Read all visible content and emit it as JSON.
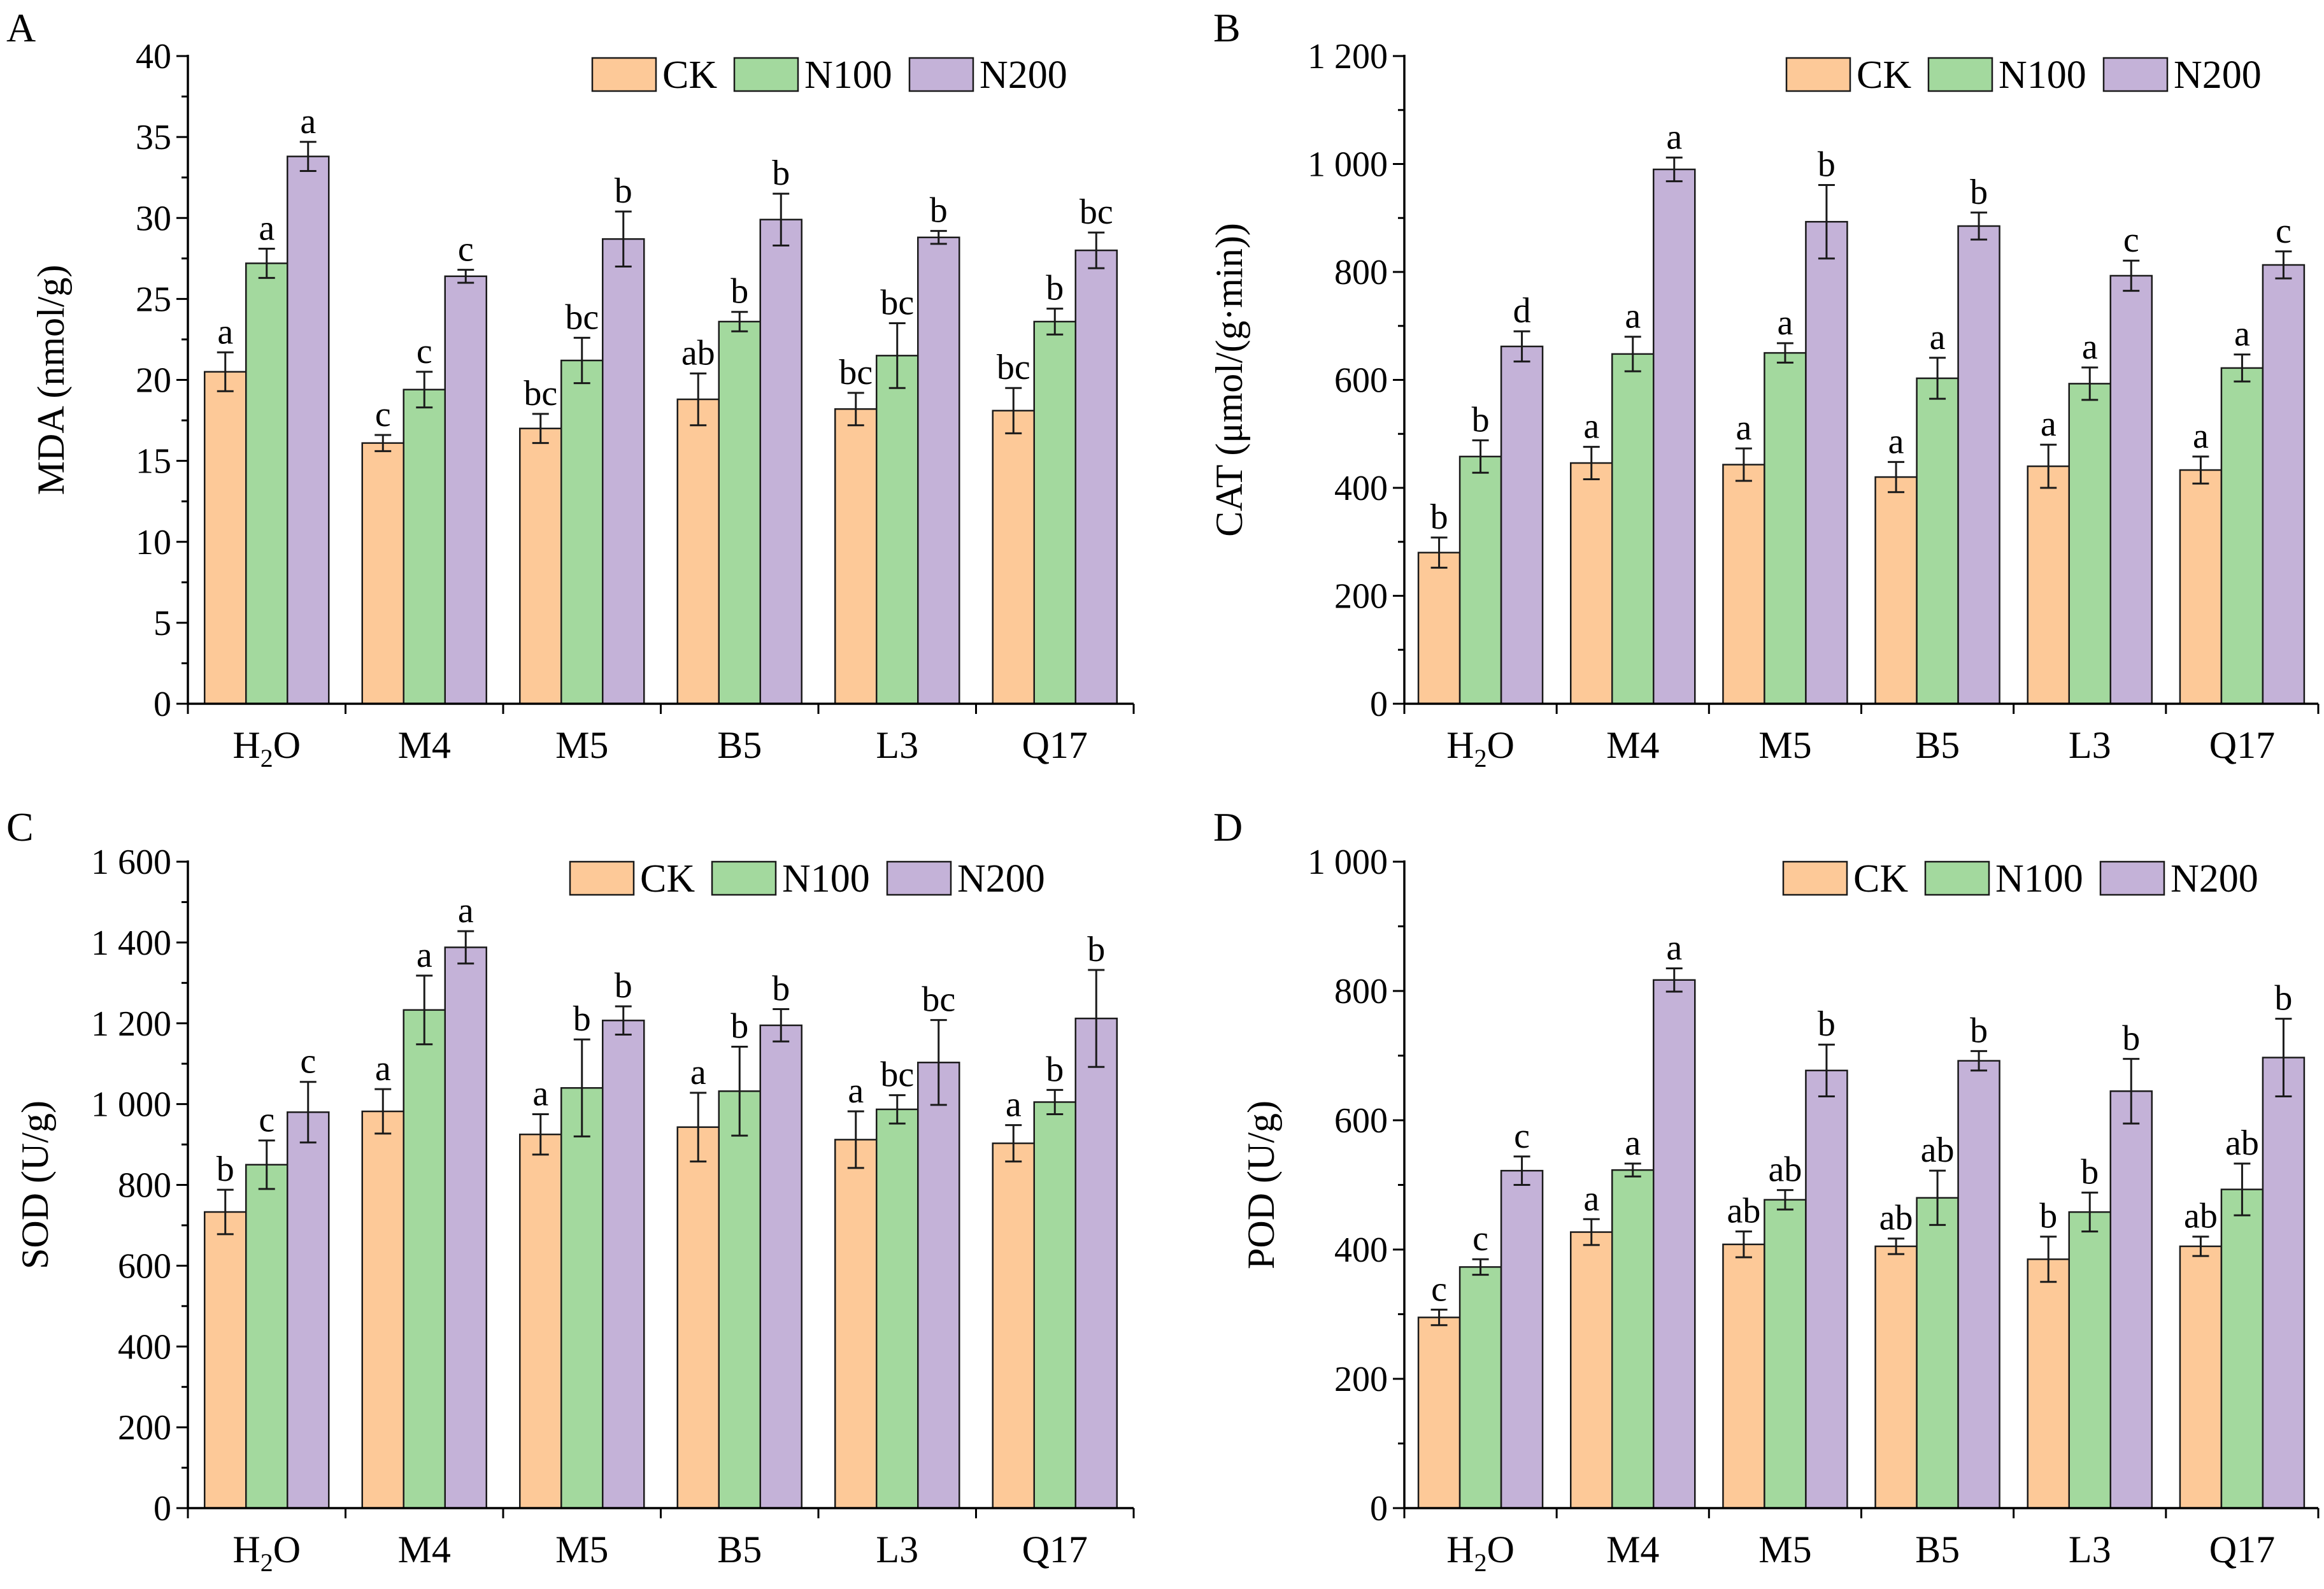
{
  "colors": {
    "CK": "#FDC998",
    "N100": "#A3D99E",
    "N200": "#C4B2D8",
    "outline": "#1a1a1a"
  },
  "chart_data": [
    {
      "panel": "A",
      "type": "bar",
      "ylabel": "MDA (nmol/g)",
      "categories": [
        "H2O",
        "M4",
        "M5",
        "B5",
        "L3",
        "Q17"
      ],
      "ylim": [
        0,
        40
      ],
      "yticks": [
        0,
        5,
        10,
        15,
        20,
        25,
        30,
        35,
        40
      ],
      "ytick_labels": [
        "0",
        "5",
        "10",
        "15",
        "20",
        "25",
        "30",
        "35",
        "40"
      ],
      "legend": "top-right",
      "series": [
        {
          "name": "CK",
          "values": [
            20.5,
            16.1,
            17.0,
            18.8,
            18.2,
            18.1
          ],
          "errors": [
            1.2,
            0.5,
            0.9,
            1.6,
            1.0,
            1.4
          ],
          "letters": [
            "a",
            "c",
            "bc",
            "ab",
            "bc",
            "bc"
          ]
        },
        {
          "name": "N100",
          "values": [
            27.2,
            19.4,
            21.2,
            23.6,
            21.5,
            23.6
          ],
          "errors": [
            0.9,
            1.1,
            1.4,
            0.6,
            2.0,
            0.8
          ],
          "letters": [
            "a",
            "c",
            "bc",
            "b",
            "bc",
            "b"
          ]
        },
        {
          "name": "N200",
          "values": [
            33.8,
            26.4,
            28.7,
            29.9,
            28.8,
            28.0
          ],
          "errors": [
            0.9,
            0.4,
            1.7,
            1.6,
            0.4,
            1.1
          ],
          "letters": [
            "a",
            "c",
            "b",
            "b",
            "b",
            "bc"
          ]
        }
      ]
    },
    {
      "panel": "B",
      "type": "bar",
      "ylabel": "CAT (μmol/(g·min))",
      "categories": [
        "H2O",
        "M4",
        "M5",
        "B5",
        "L3",
        "Q17"
      ],
      "ylim": [
        0,
        1200
      ],
      "yticks": [
        0,
        200,
        400,
        600,
        800,
        1000,
        1200
      ],
      "ytick_labels": [
        "0",
        "200",
        "400",
        "600",
        "800",
        "1 000",
        "1 200"
      ],
      "legend": "top-right",
      "series": [
        {
          "name": "CK",
          "values": [
            280,
            446,
            443,
            420,
            440,
            433
          ],
          "errors": [
            28,
            30,
            30,
            28,
            40,
            25
          ],
          "letters": [
            "b",
            "a",
            "a",
            "a",
            "a",
            "a"
          ]
        },
        {
          "name": "N100",
          "values": [
            458,
            648,
            650,
            603,
            593,
            622
          ],
          "errors": [
            30,
            32,
            18,
            38,
            30,
            25
          ],
          "letters": [
            "b",
            "a",
            "a",
            "a",
            "a",
            "a"
          ]
        },
        {
          "name": "N200",
          "values": [
            662,
            990,
            893,
            885,
            793,
            813
          ],
          "errors": [
            28,
            22,
            68,
            25,
            28,
            25
          ],
          "letters": [
            "d",
            "a",
            "b",
            "b",
            "c",
            "c"
          ]
        }
      ]
    },
    {
      "panel": "C",
      "type": "bar",
      "ylabel": "SOD (U/g)",
      "categories": [
        "H2O",
        "M4",
        "M5",
        "B5",
        "L3",
        "Q17"
      ],
      "ylim": [
        0,
        1600
      ],
      "yticks": [
        0,
        200,
        400,
        600,
        800,
        1000,
        1200,
        1400,
        1600
      ],
      "ytick_labels": [
        "0",
        "200",
        "400",
        "600",
        "800",
        "1 000",
        "1 200",
        "1 400",
        "1 600"
      ],
      "legend": "top-right",
      "series": [
        {
          "name": "CK",
          "values": [
            733,
            982,
            925,
            943,
            912,
            903
          ],
          "errors": [
            55,
            55,
            50,
            85,
            70,
            45
          ],
          "letters": [
            "b",
            "a",
            "a",
            "a",
            "a",
            "a"
          ]
        },
        {
          "name": "N100",
          "values": [
            850,
            1233,
            1040,
            1032,
            987,
            1005
          ],
          "errors": [
            60,
            85,
            120,
            110,
            35,
            30
          ],
          "letters": [
            "c",
            "a",
            "b",
            "b",
            "bc",
            "b"
          ]
        },
        {
          "name": "N200",
          "values": [
            980,
            1388,
            1207,
            1195,
            1103,
            1212
          ],
          "errors": [
            75,
            40,
            35,
            40,
            105,
            120
          ],
          "letters": [
            "c",
            "a",
            "b",
            "b",
            "bc",
            "b"
          ]
        }
      ]
    },
    {
      "panel": "D",
      "type": "bar",
      "ylabel": "POD (U/g)",
      "categories": [
        "H2O",
        "M4",
        "M5",
        "B5",
        "L3",
        "Q17"
      ],
      "ylim": [
        0,
        1000
      ],
      "yticks": [
        0,
        200,
        400,
        600,
        800,
        1000
      ],
      "ytick_labels": [
        "0",
        "200",
        "400",
        "600",
        "800",
        "1 000"
      ],
      "legend": "top-right",
      "series": [
        {
          "name": "CK",
          "values": [
            295,
            427,
            408,
            405,
            385,
            405
          ],
          "errors": [
            12,
            20,
            20,
            12,
            35,
            15
          ],
          "letters": [
            "c",
            "a",
            "ab",
            "ab",
            "b",
            "ab"
          ]
        },
        {
          "name": "N100",
          "values": [
            373,
            523,
            477,
            480,
            458,
            493
          ],
          "errors": [
            12,
            10,
            15,
            42,
            30,
            40
          ],
          "letters": [
            "c",
            "a",
            "ab",
            "ab",
            "b",
            "ab"
          ]
        },
        {
          "name": "N200",
          "values": [
            522,
            817,
            677,
            692,
            645,
            697
          ],
          "errors": [
            22,
            18,
            40,
            15,
            50,
            60
          ],
          "letters": [
            "c",
            "a",
            "b",
            "b",
            "b",
            "b"
          ]
        }
      ]
    }
  ]
}
